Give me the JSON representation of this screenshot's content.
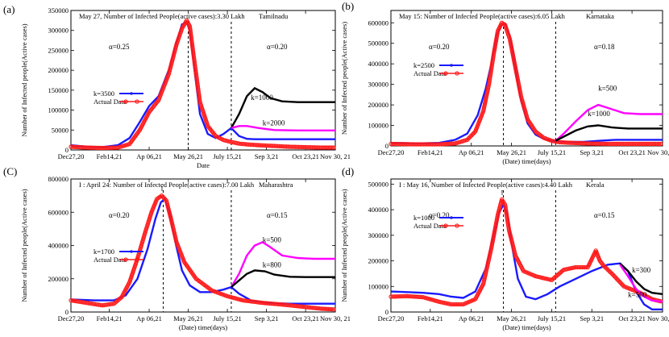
{
  "chart_data": [
    {
      "type": "line",
      "panel_label": "(a)",
      "title": "May 27, Number of Infected People(active cases):3.30 Lakh",
      "region": "Tamilnadu",
      "xlabel": "Date",
      "ylabel": "Number of Infected people(Active cases)",
      "x_ticks": [
        "Dec27,20",
        "Feb14,21",
        "Ap 06,21",
        "May 26,21",
        "July 15,21",
        "Sep 3,21",
        "Oct 23,21",
        "Nov 30, 21"
      ],
      "y_ticks": [
        "0",
        "50000",
        "100000",
        "150000",
        "200000",
        "250000",
        "300000",
        "350000"
      ],
      "ylim": [
        0,
        350000
      ],
      "xlim": [
        0,
        338
      ],
      "alpha_left": "α=0.25",
      "alpha_right": "α=0.20",
      "vlines": [
        150,
        205
      ],
      "peak_marker": "",
      "legend": [
        "k=3500",
        "Actual Data"
      ],
      "annotations": [
        {
          "text": "k=1000",
          "x": 230,
          "y": 125000
        },
        {
          "text": "k=2000",
          "x": 245,
          "y": 62000
        }
      ],
      "series": [
        {
          "name": "k=3500",
          "color": "#1a1aff",
          "style": "line",
          "x": [
            0,
            20,
            40,
            60,
            75,
            88,
            100,
            112,
            125,
            135,
            142,
            148,
            152,
            158,
            165,
            175,
            185,
            195,
            205,
            215,
            225,
            235,
            250,
            270,
            300,
            338
          ],
          "y": [
            12000,
            8000,
            7000,
            12000,
            30000,
            70000,
            110000,
            135000,
            200000,
            270000,
            315000,
            320000,
            300000,
            200000,
            90000,
            40000,
            30000,
            40000,
            55000,
            35000,
            28000,
            27000,
            27000,
            27000,
            27000,
            27000
          ]
        },
        {
          "name": "Actual Data",
          "color": "#ff1a1a",
          "style": "markers",
          "x": [
            0,
            20,
            40,
            60,
            75,
            88,
            100,
            112,
            125,
            135,
            142,
            148,
            152,
            158,
            165,
            175,
            185,
            195,
            205,
            215,
            225,
            240,
            260,
            280,
            300,
            320,
            338
          ],
          "y": [
            8000,
            6000,
            5000,
            6000,
            15000,
            50000,
            95000,
            125000,
            190000,
            265000,
            305000,
            325000,
            310000,
            220000,
            120000,
            60000,
            35000,
            25000,
            20000,
            16000,
            14000,
            12000,
            10000,
            8000,
            7000,
            6000,
            6000
          ]
        },
        {
          "name": "k=1000",
          "color": "#000000",
          "style": "line",
          "x": [
            205,
            215,
            225,
            235,
            245,
            255,
            270,
            290,
            310,
            338
          ],
          "y": [
            55000,
            90000,
            135000,
            155000,
            145000,
            130000,
            122000,
            120000,
            120000,
            120000
          ]
        },
        {
          "name": "k=2000",
          "color": "#ff00ff",
          "style": "line",
          "x": [
            205,
            215,
            225,
            240,
            260,
            290,
            338
          ],
          "y": [
            55000,
            60000,
            60000,
            55000,
            50000,
            49000,
            49000
          ]
        }
      ]
    },
    {
      "type": "line",
      "panel_label": "(b)",
      "title": "May 15: Number of Infected People(active cases):6.05 Lakh",
      "region": "Karnataka",
      "xlabel": "(Date) time(days)",
      "ylabel": "Number of Infected people(Active cases)",
      "x_ticks": [
        "Dec27,20",
        "Feb14,21",
        "Ap 06,21",
        "May 26,21",
        "July 15,21",
        "Sep 3,21",
        "Oct 23,21",
        "Nov 30, 21"
      ],
      "y_ticks": [
        "0",
        "100000",
        "200000",
        "300000",
        "400000",
        "500000",
        "600000"
      ],
      "ylim": [
        0,
        660000
      ],
      "xlim": [
        0,
        338
      ],
      "alpha_left": "α=0.20",
      "alpha_right": "α=0.18",
      "vlines": [
        140,
        205
      ],
      "peak_marker": "",
      "legend": [
        "k=2500",
        "Actual Data"
      ],
      "annotations": [
        {
          "text": "k=500",
          "x": 258,
          "y": 270000
        },
        {
          "text": "k=1000",
          "x": 245,
          "y": 145000
        }
      ],
      "series": [
        {
          "name": "k=2500",
          "color": "#1a1aff",
          "style": "line",
          "x": [
            0,
            30,
            60,
            80,
            95,
            108,
            118,
            126,
            132,
            137,
            142,
            148,
            155,
            162,
            170,
            180,
            190,
            200,
            210,
            225,
            240,
            260,
            280,
            300,
            338
          ],
          "y": [
            15000,
            12000,
            15000,
            30000,
            60000,
            150000,
            280000,
            420000,
            540000,
            590000,
            595000,
            530000,
            380000,
            220000,
            110000,
            55000,
            35000,
            25000,
            20000,
            20000,
            20000,
            25000,
            30000,
            30000,
            30000
          ]
        },
        {
          "name": "Actual Data",
          "color": "#ff1a1a",
          "style": "markers",
          "x": [
            0,
            30,
            60,
            80,
            95,
            105,
            115,
            122,
            128,
            133,
            138,
            142,
            148,
            155,
            162,
            170,
            180,
            190,
            200,
            210,
            225,
            245,
            270,
            300,
            338
          ],
          "y": [
            10000,
            8000,
            8000,
            12000,
            30000,
            70000,
            170000,
            300000,
            450000,
            560000,
            600000,
            590000,
            520000,
            380000,
            240000,
            130000,
            70000,
            40000,
            25000,
            18000,
            15000,
            12000,
            10000,
            10000,
            10000
          ]
        },
        {
          "name": "k=500",
          "color": "#ff00ff",
          "style": "line",
          "x": [
            205,
            215,
            230,
            245,
            258,
            270,
            290,
            310,
            338
          ],
          "y": [
            25000,
            60000,
            120000,
            175000,
            200000,
            185000,
            160000,
            155000,
            155000
          ]
        },
        {
          "name": "k=1000",
          "color": "#000000",
          "style": "line",
          "x": [
            205,
            215,
            230,
            245,
            258,
            275,
            295,
            338
          ],
          "y": [
            25000,
            45000,
            75000,
            95000,
            100000,
            90000,
            85000,
            85000
          ]
        }
      ]
    },
    {
      "type": "line",
      "panel_label": "(C)",
      "title": "I : April 24: Number of Infected People(active cases):7.00 Lakh",
      "region": "Maharashtra",
      "xlabel": "(Date) time(days)",
      "ylabel": "Number of Infected people(Active cases)",
      "x_ticks": [
        "Dec27,20",
        "Feb14,21",
        "Ap 06,21",
        "May 26,21",
        "July 15,21",
        "Sep 3,21",
        "Oct 23,21",
        "Nov 30, 21"
      ],
      "y_ticks": [
        "0",
        "200000",
        "400000",
        "600000",
        "800000"
      ],
      "ylim": [
        0,
        800000
      ],
      "xlim": [
        0,
        338
      ],
      "alpha_left": "α=0.20",
      "alpha_right": "α=0.15",
      "vlines": [
        118,
        205
      ],
      "peak_marker": "I",
      "legend": [
        "k=1700",
        "Actual Data"
      ],
      "annotations": [
        {
          "text": "k=500",
          "x": 245,
          "y": 420000
        },
        {
          "text": "k=800",
          "x": 245,
          "y": 270000
        }
      ],
      "series": [
        {
          "name": "k=1700",
          "color": "#1a1aff",
          "style": "line",
          "x": [
            0,
            30,
            55,
            70,
            85,
            98,
            108,
            115,
            120,
            126,
            133,
            142,
            152,
            165,
            180,
            195,
            205,
            215,
            230,
            250,
            280,
            310,
            338
          ],
          "y": [
            75000,
            70000,
            70000,
            100000,
            200000,
            380000,
            560000,
            660000,
            680000,
            600000,
            430000,
            250000,
            160000,
            120000,
            120000,
            135000,
            150000,
            110000,
            70000,
            55000,
            50000,
            50000,
            50000
          ]
        },
        {
          "name": "Actual Data",
          "color": "#ff1a1a",
          "style": "markers",
          "x": [
            0,
            20,
            40,
            55,
            65,
            75,
            85,
            95,
            103,
            110,
            116,
            122,
            128,
            135,
            145,
            160,
            180,
            200,
            220,
            245,
            270,
            300,
            320,
            338
          ],
          "y": [
            70000,
            55000,
            40000,
            50000,
            90000,
            180000,
            320000,
            480000,
            600000,
            680000,
            700000,
            670000,
            560000,
            420000,
            300000,
            200000,
            130000,
            95000,
            70000,
            55000,
            45000,
            30000,
            20000,
            15000
          ]
        },
        {
          "name": "k=500",
          "color": "#ff00ff",
          "style": "line",
          "x": [
            205,
            215,
            225,
            235,
            245,
            255,
            270,
            290,
            310,
            338
          ],
          "y": [
            150000,
            230000,
            340000,
            400000,
            420000,
            390000,
            340000,
            325000,
            320000,
            320000
          ]
        },
        {
          "name": "k=800",
          "color": "#000000",
          "style": "line",
          "x": [
            205,
            215,
            225,
            235,
            248,
            260,
            280,
            300,
            338
          ],
          "y": [
            150000,
            190000,
            230000,
            250000,
            245000,
            225000,
            212000,
            210000,
            210000
          ]
        }
      ]
    },
    {
      "type": "line",
      "panel_label": "(d)",
      "title": "I : May 16, Number of Infected People(active cases):4.40 Lakh",
      "region": "Kerala",
      "xlabel": "(Date) time(days)",
      "ylabel": "Number of Infected people(Active cases)",
      "x_ticks": [
        "Dec27,20",
        "Feb14,21",
        "Ap 06,21",
        "May 26,21",
        "July 15,21",
        "Sep 3,21",
        "Oct 23,21",
        "Nov 30, 21"
      ],
      "y_ticks": [
        "0",
        "100000",
        "200000",
        "300000",
        "400000",
        "500000"
      ],
      "ylim": [
        0,
        520000
      ],
      "xlim": [
        0,
        338
      ],
      "alpha_left": "α=0.20",
      "alpha_right": "α=0.15",
      "vlines": [
        140,
        205
      ],
      "peak_marker": "I",
      "legend": [
        "k=1000",
        "Actual Data"
      ],
      "annotations": [
        {
          "text": "k=300",
          "x": 300,
          "y": 155000
        },
        {
          "text": "k=500",
          "x": 295,
          "y": 58000
        }
      ],
      "series": [
        {
          "name": "k=1000",
          "color": "#1a1aff",
          "style": "line",
          "x": [
            0,
            20,
            40,
            60,
            75,
            90,
            105,
            118,
            128,
            135,
            140,
            145,
            150,
            158,
            168,
            180,
            195,
            210,
            230,
            250,
            270,
            285,
            295,
            305,
            315,
            325,
            338
          ],
          "y": [
            80000,
            78000,
            75000,
            70000,
            60000,
            55000,
            80000,
            170000,
            300000,
            390000,
            420000,
            380000,
            270000,
            130000,
            60000,
            50000,
            70000,
            100000,
            130000,
            160000,
            185000,
            190000,
            160000,
            80000,
            30000,
            10000,
            10000
          ]
        },
        {
          "name": "Actual Data",
          "color": "#ff1a1a",
          "style": "markers",
          "x": [
            0,
            20,
            40,
            60,
            75,
            90,
            105,
            115,
            125,
            133,
            138,
            142,
            147,
            155,
            165,
            180,
            200,
            215,
            230,
            245,
            255,
            260,
            265,
            275,
            290,
            310,
            325,
            338
          ],
          "y": [
            60000,
            62000,
            58000,
            40000,
            30000,
            30000,
            50000,
            110000,
            250000,
            380000,
            440000,
            420000,
            320000,
            220000,
            160000,
            140000,
            125000,
            165000,
            175000,
            175000,
            240000,
            200000,
            180000,
            150000,
            100000,
            75000,
            50000,
            40000
          ]
        },
        {
          "name": "k=300",
          "color": "#000000",
          "style": "line",
          "x": [
            285,
            295,
            305,
            315,
            325,
            338
          ],
          "y": [
            190000,
            160000,
            120000,
            90000,
            75000,
            70000
          ]
        },
        {
          "name": "k=500",
          "color": "#ff00ff",
          "style": "line",
          "x": [
            285,
            295,
            305,
            315,
            325,
            338
          ],
          "y": [
            185000,
            140000,
            90000,
            60000,
            45000,
            40000
          ]
        }
      ]
    }
  ]
}
